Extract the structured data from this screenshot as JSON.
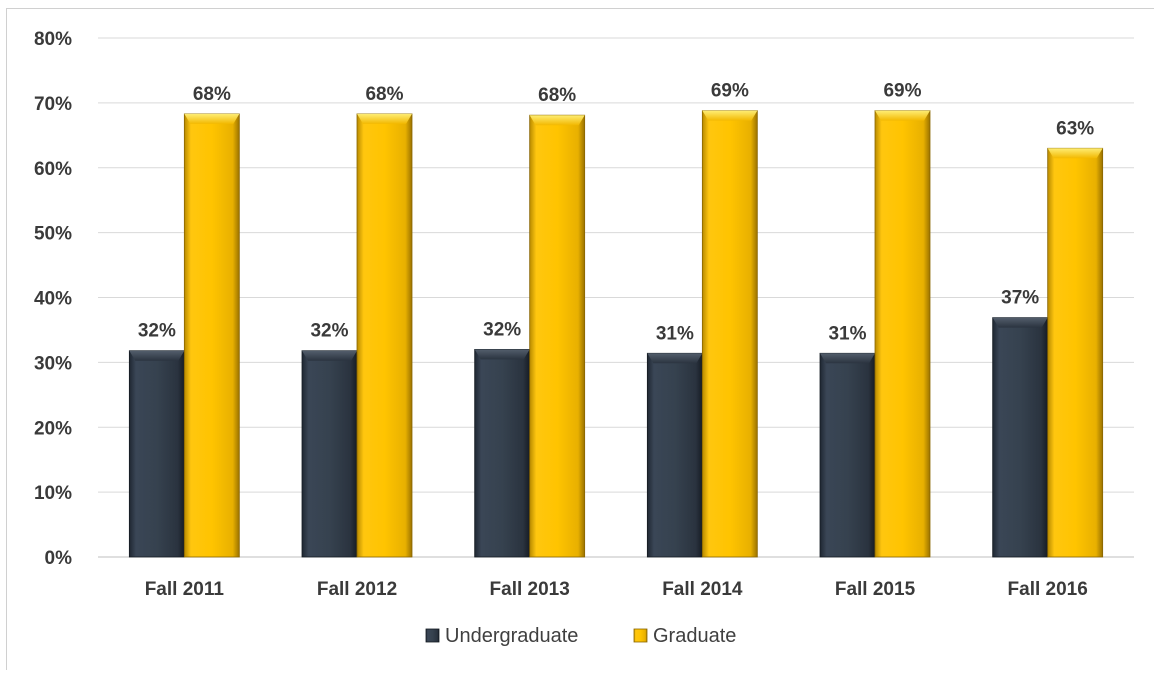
{
  "chart_data": {
    "type": "bar",
    "categories": [
      "Fall 2011",
      "Fall 2012",
      "Fall 2013",
      "Fall 2014",
      "Fall 2015",
      "Fall 2016"
    ],
    "series": [
      {
        "name": "Undergraduate",
        "values": [
          31.8,
          31.8,
          32.0,
          31.4,
          31.4,
          36.9
        ],
        "labels": [
          "32%",
          "32%",
          "32%",
          "31%",
          "31%",
          "37%"
        ],
        "color": "#34404f"
      },
      {
        "name": "Graduate",
        "values": [
          68.3,
          68.3,
          68.1,
          68.8,
          68.8,
          63.0
        ],
        "labels": [
          "68%",
          "68%",
          "68%",
          "69%",
          "69%",
          "63%"
        ],
        "color": "#ffc000"
      }
    ],
    "y_ticks": [
      "0%",
      "10%",
      "20%",
      "30%",
      "40%",
      "50%",
      "60%",
      "70%",
      "80%"
    ],
    "ylim": [
      0,
      80
    ],
    "grid": true,
    "legend": "bottom"
  }
}
